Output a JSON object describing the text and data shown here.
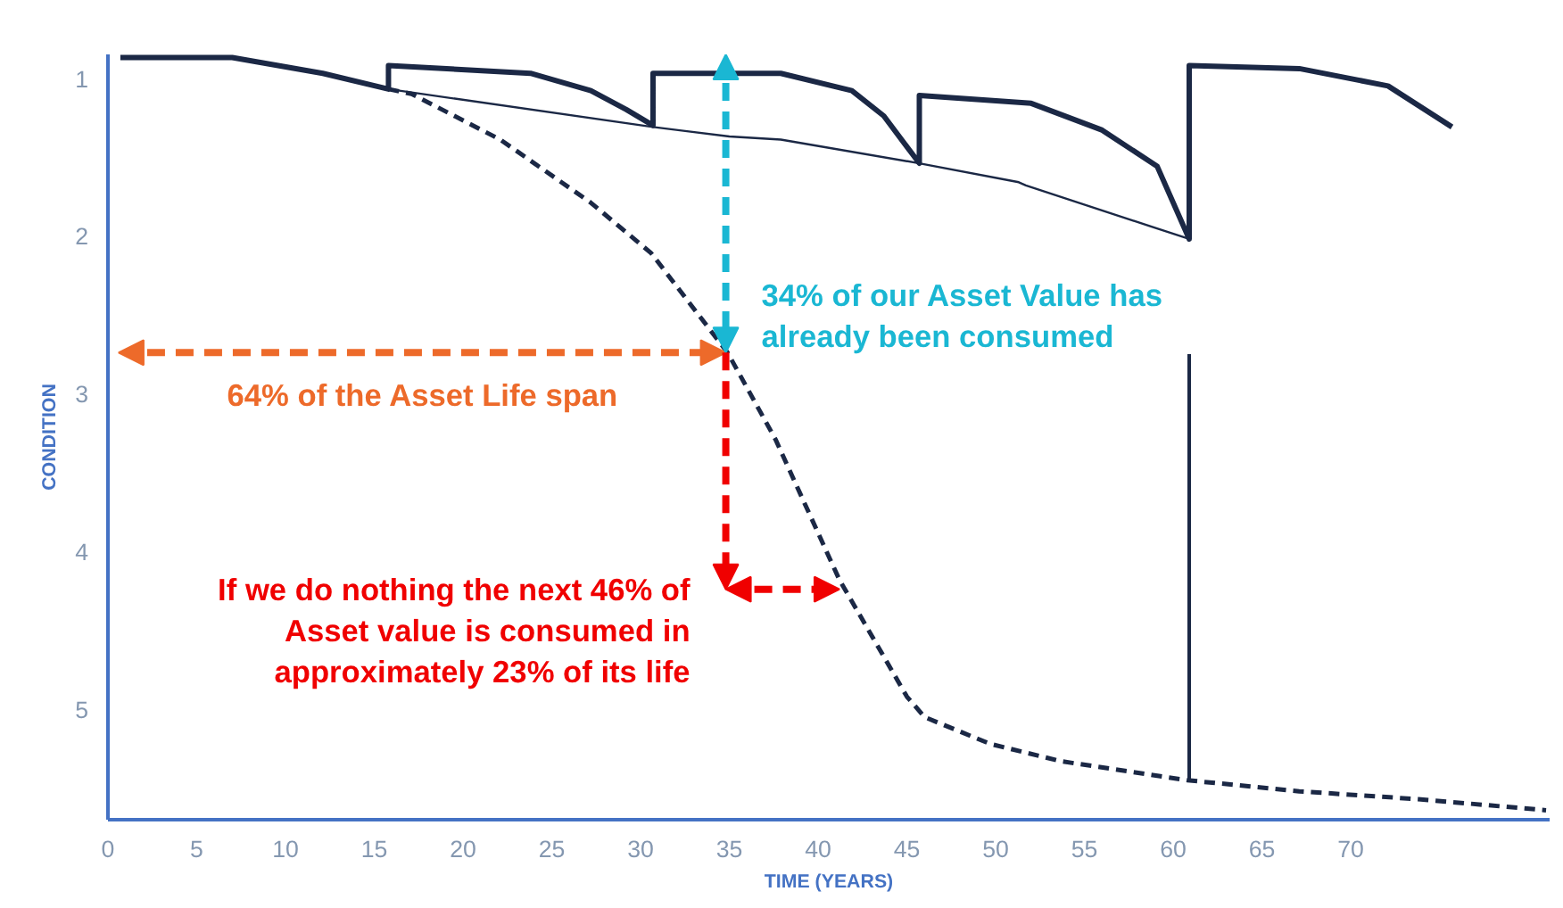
{
  "chart_data": {
    "type": "line",
    "xlabel": "TIME (YEARS)",
    "ylabel": "CONDITION",
    "xlim": [
      0,
      81.2
    ],
    "ylim": [
      5.7,
      0.85
    ],
    "xticks": [
      0,
      5,
      10,
      15,
      20,
      25,
      30,
      35,
      40,
      45,
      50,
      55,
      60,
      65,
      70
    ],
    "yticks": [
      1,
      2,
      3,
      4,
      5
    ],
    "grid": false,
    "series": [
      {
        "color": "#1b2845",
        "x": [
          0.7,
          7,
          12.1,
          15.8,
          15.8,
          23.8,
          27.2,
          29.2,
          30.7,
          30.7,
          37.9,
          41.9,
          43.7,
          45.7,
          45.7,
          52.0,
          56.0,
          59.1,
          60.9,
          60.9,
          67.1,
          72.1,
          75.7
        ],
        "values": [
          0.87,
          0.87,
          0.97,
          1.07,
          0.92,
          0.97,
          1.08,
          1.2,
          1.3,
          0.97,
          0.97,
          1.08,
          1.24,
          1.54,
          1.11,
          1.16,
          1.33,
          1.56,
          2.02,
          0.92,
          0.94,
          1.05,
          1.31
        ]
      },
      {
        "color": "#1b2845",
        "line_style": "dashed",
        "x": [
          15.8,
          17.1,
          22.1,
          27.2,
          30.6,
          34.9,
          37.6,
          41.2,
          45,
          46,
          49.7,
          53.7,
          60.8,
          67.1,
          73.8,
          81
        ],
        "values": [
          1.07,
          1.1,
          1.39,
          1.79,
          2.11,
          2.74,
          3.29,
          4.18,
          4.92,
          5.05,
          5.22,
          5.33,
          5.45,
          5.52,
          5.57,
          5.64
        ]
      },
      {
        "color": "#1b2845",
        "x": [
          15.8,
          30.7,
          35,
          37.9,
          45.7,
          51.3,
          51.7,
          60.9
        ],
        "values": [
          1.07,
          1.31,
          1.37,
          1.39,
          1.54,
          1.66,
          1.68,
          2.02
        ]
      },
      {
        "color": "#1b2845",
        "x": [
          60.9,
          60.9
        ],
        "values": [
          2.75,
          5.45
        ]
      }
    ],
    "annotations": [
      "64% of the Asset Life span",
      {
        "text": "34% of our Asset Value has\nalready been consumed",
        "x": 34.8,
        "y": 2.74
      },
      {
        "text": "If we do nothing the next 46% of\nAsset value is consumed in\napproximately 23% of its life",
        "x": 41.2,
        "y": 4.24
      }
    ]
  }
}
